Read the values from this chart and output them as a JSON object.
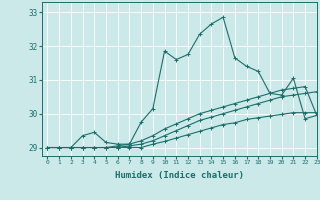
{
  "xlabel": "Humidex (Indice chaleur)",
  "ylabel": "",
  "bg_color": "#cce9ea",
  "grid_color": "#ffffff",
  "line_color": "#1a6e6a",
  "xlim": [
    -0.5,
    23
  ],
  "ylim": [
    28.75,
    33.3
  ],
  "yticks": [
    29,
    30,
    31,
    32,
    33
  ],
  "xticks": [
    0,
    1,
    2,
    3,
    4,
    5,
    6,
    7,
    8,
    9,
    10,
    11,
    12,
    13,
    14,
    15,
    16,
    17,
    18,
    19,
    20,
    21,
    22,
    23
  ],
  "series": [
    [
      29.0,
      29.0,
      29.0,
      29.35,
      29.45,
      29.15,
      29.1,
      29.1,
      29.75,
      30.15,
      31.85,
      31.6,
      31.75,
      32.35,
      32.65,
      32.85,
      31.65,
      31.4,
      31.25,
      30.6,
      30.55,
      31.05,
      29.85,
      29.95
    ],
    [
      29.0,
      29.0,
      29.0,
      29.0,
      29.0,
      29.0,
      29.05,
      29.1,
      29.2,
      29.35,
      29.55,
      29.7,
      29.85,
      30.0,
      30.1,
      30.2,
      30.3,
      30.4,
      30.5,
      30.6,
      30.7,
      30.75,
      30.8,
      29.95
    ],
    [
      29.0,
      29.0,
      29.0,
      29.0,
      29.0,
      29.0,
      29.0,
      29.05,
      29.1,
      29.2,
      29.35,
      29.5,
      29.65,
      29.8,
      29.9,
      30.0,
      30.1,
      30.2,
      30.3,
      30.4,
      30.5,
      30.55,
      30.6,
      30.65
    ],
    [
      29.0,
      29.0,
      29.0,
      29.0,
      29.0,
      29.0,
      29.0,
      29.0,
      29.0,
      29.1,
      29.18,
      29.28,
      29.38,
      29.48,
      29.58,
      29.68,
      29.73,
      29.83,
      29.88,
      29.93,
      29.98,
      30.03,
      30.03,
      30.03
    ]
  ],
  "marker": "+",
  "markersize": 3,
  "linewidth": 0.8
}
